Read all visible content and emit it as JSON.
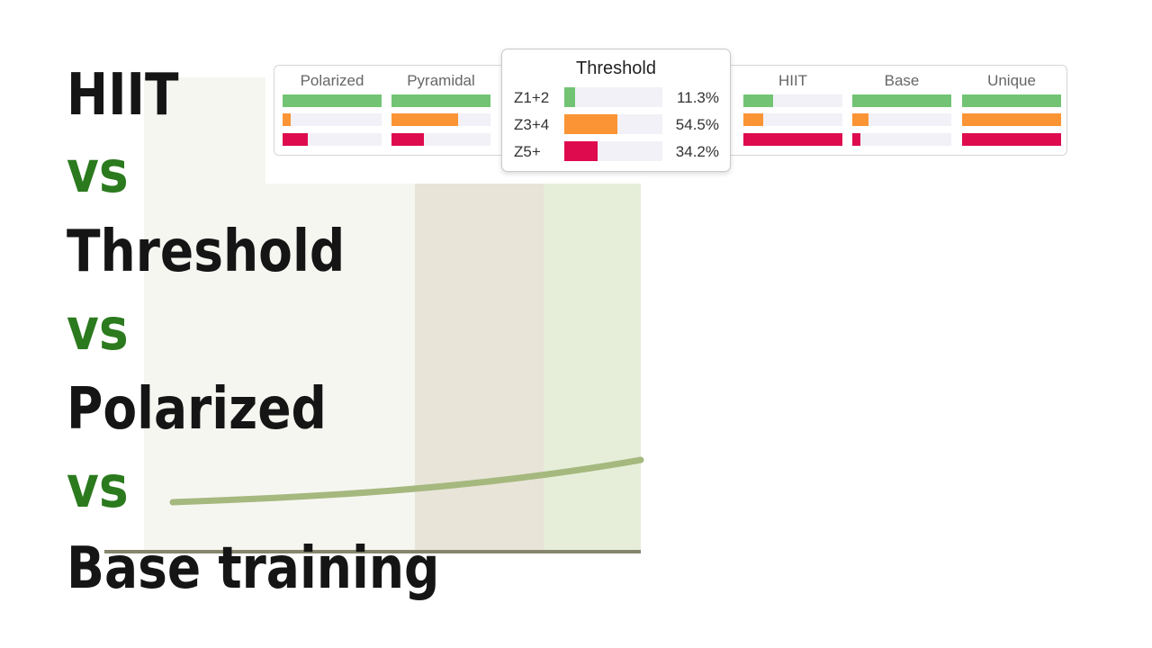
{
  "headline": {
    "line1": "HIIT",
    "vs1": "vs",
    "line2": "Threshold",
    "vs2": "vs",
    "line3": "Polarized",
    "vs3": "vs",
    "line4": "Base training"
  },
  "colors": {
    "z12": "#72c474",
    "z34": "#fb9434",
    "z5": "#df0b4f",
    "track": "#f1f1f7",
    "headline_text": "#151515",
    "vs_text": "#2b7a1e",
    "bg_band_light": "#f6f6f1",
    "bg_band_mid": "#e8e4d8",
    "bg_band_green": "#e6eed9",
    "curve": "#a5b87e",
    "baseline": "#86866e"
  },
  "chart_data": {
    "type": "bar",
    "subtype": "stacked-distribution",
    "zones": [
      "Z1+2",
      "Z3+4",
      "Z5+"
    ],
    "models": [
      {
        "name": "Polarized",
        "values": [
          100,
          8,
          25
        ]
      },
      {
        "name": "Pyramidal",
        "values": [
          100,
          67,
          33
        ]
      },
      {
        "name": "Threshold",
        "values": [
          11.3,
          54.5,
          34.2
        ]
      },
      {
        "name": "HIIT",
        "values": [
          30,
          20,
          100
        ]
      },
      {
        "name": "Base",
        "values": [
          100,
          16,
          8
        ]
      },
      {
        "name": "Unique",
        "values": [
          100,
          100,
          100
        ]
      }
    ],
    "tooltip": {
      "title": "Threshold",
      "rows": [
        {
          "label": "Z1+2",
          "value": 11.3,
          "text": "11.3%"
        },
        {
          "label": "Z3+4",
          "value": 54.5,
          "text": "54.5%"
        },
        {
          "label": "Z5+",
          "value": 34.2,
          "text": "34.2%"
        }
      ]
    }
  }
}
